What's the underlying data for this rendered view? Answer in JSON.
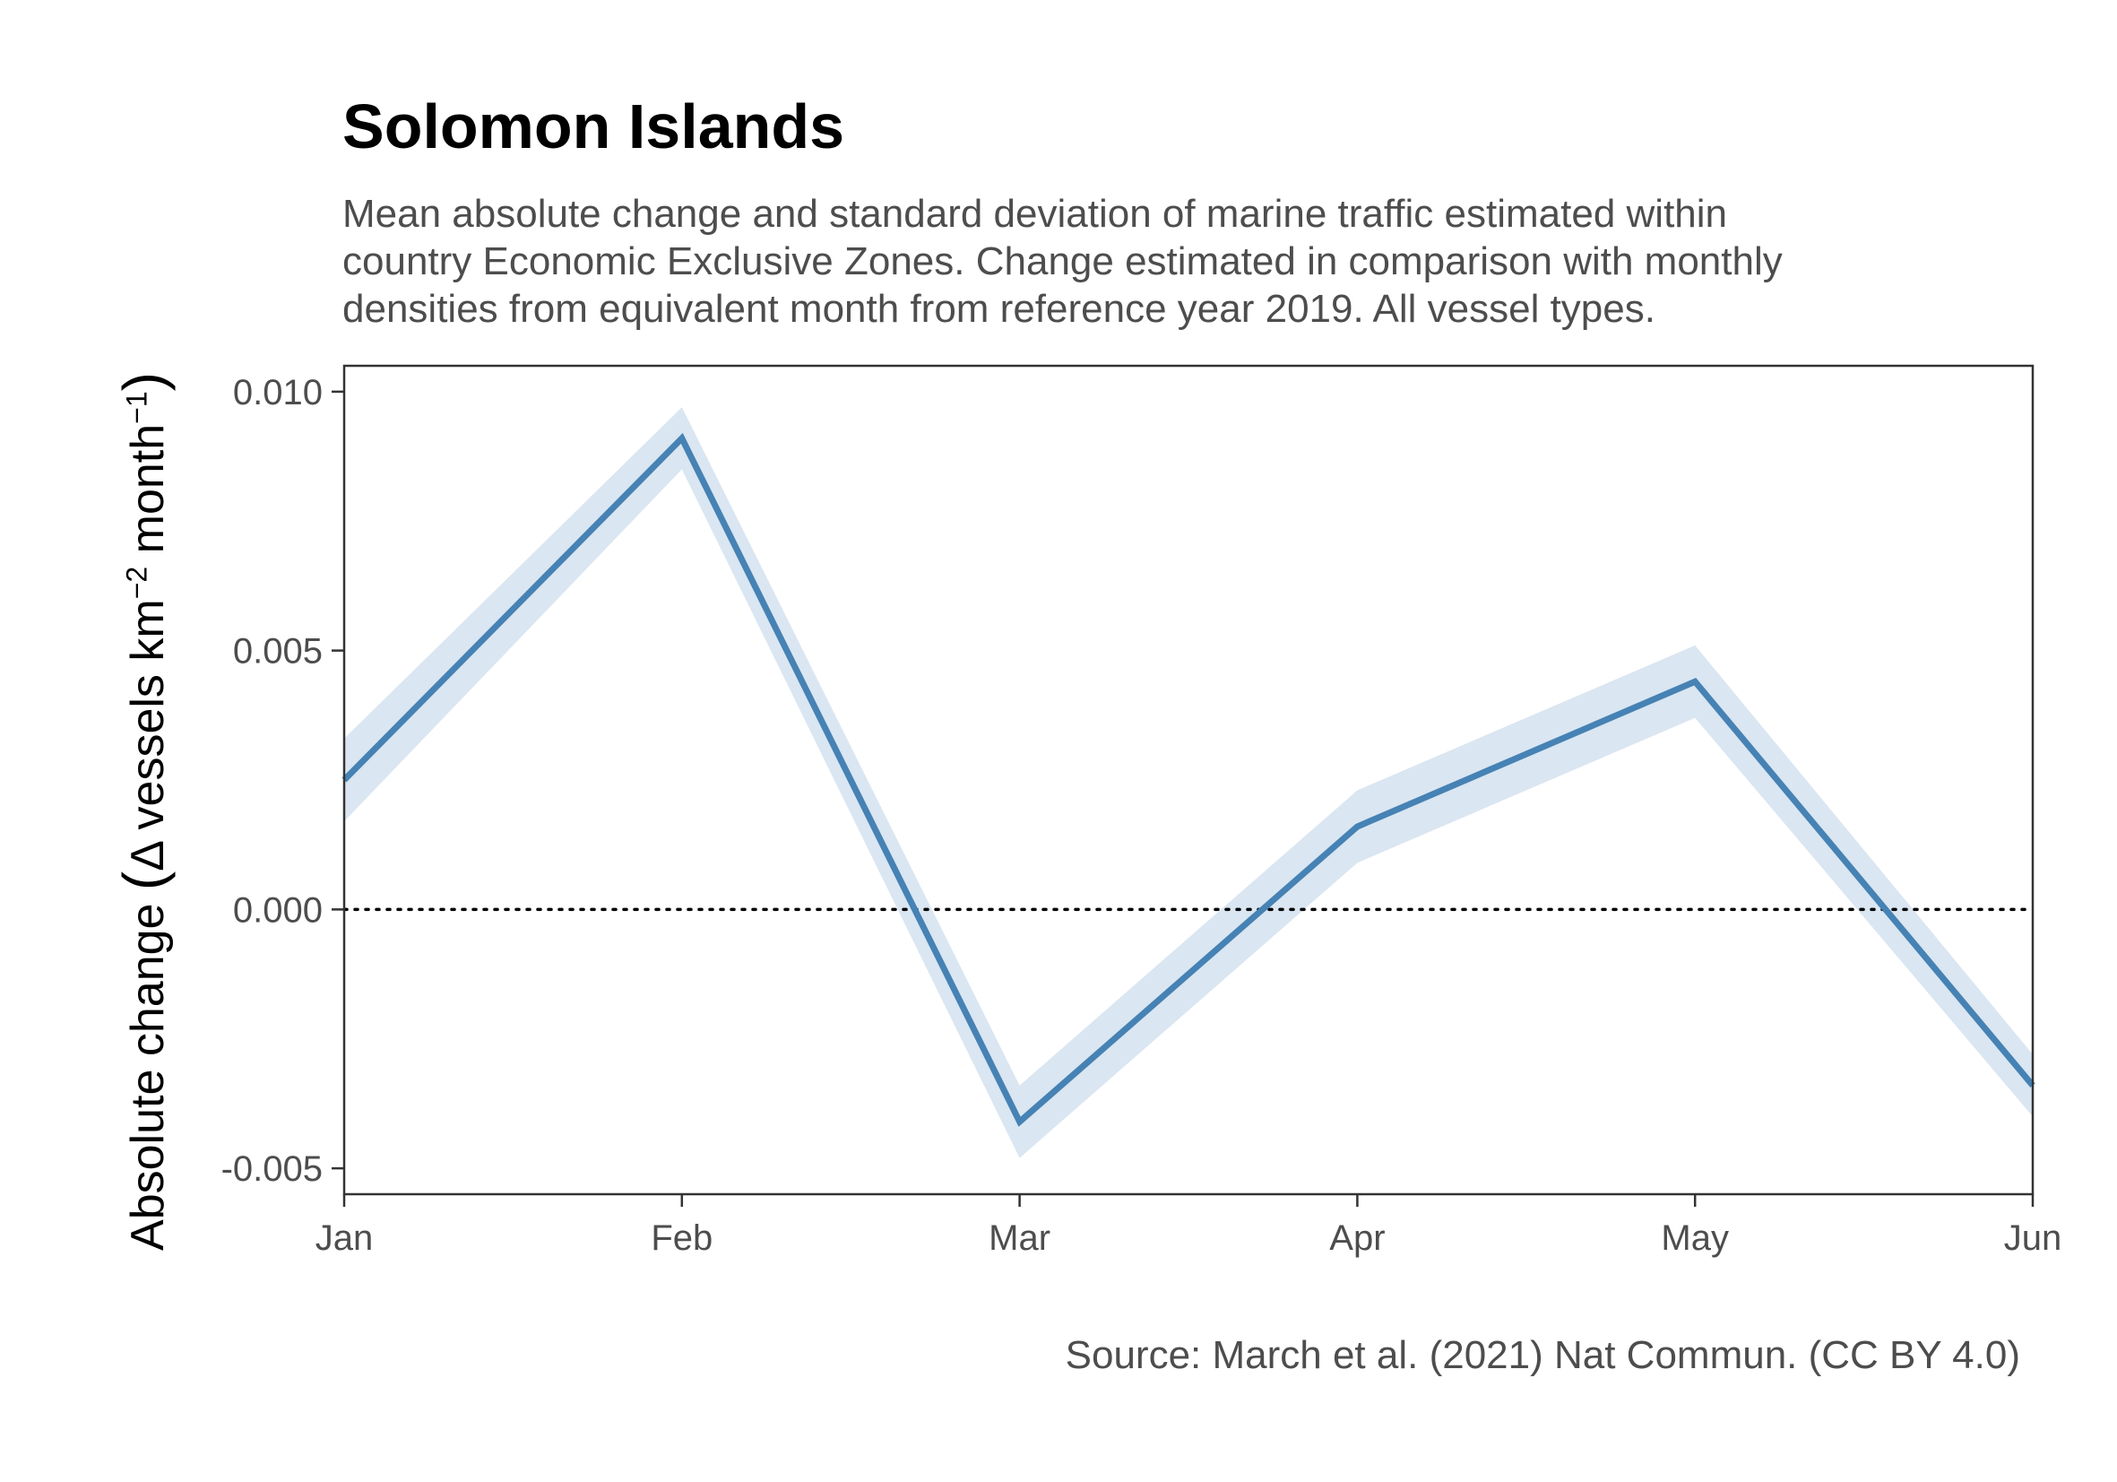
{
  "chart_data": {
    "type": "line",
    "title": "Solomon Islands",
    "subtitle_lines": [
      "Mean absolute change and standard deviation of marine traffic estimated within",
      "country Economic Exclusive Zones. Change estimated in comparison with monthly",
      "densities from equivalent month from reference year 2019. All vessel types."
    ],
    "caption": "Source: March et al. (2021) Nat Commun. (CC BY 4.0)",
    "ylabel": {
      "prefix": "Absolute change",
      "open": "(",
      "delta": "Δ vessels km",
      "exp1": "−2",
      "mid": " month",
      "exp2": "−1",
      "close": ")"
    },
    "xlabel": "",
    "categories": [
      "Jan",
      "Feb",
      "Mar",
      "Apr",
      "May",
      "Jun"
    ],
    "series": [
      {
        "values": [
          0.0025,
          0.0091,
          -0.0041,
          0.0016,
          0.0044,
          -0.0034
        ],
        "sd": [
          0.0008,
          0.0006,
          0.0007,
          0.0007,
          0.0007,
          0.0006
        ]
      }
    ],
    "yticks": [
      -0.005,
      0.0,
      0.005,
      0.01
    ],
    "ytick_labels": [
      "-0.005",
      "0.000",
      "0.005",
      "0.010"
    ],
    "ylim": [
      -0.0055,
      0.0105
    ],
    "reference_line": 0.0,
    "colors": {
      "line": "#4682b4",
      "ribbon": "#dae6f1",
      "reference": "#000000",
      "axis": "#333333"
    }
  }
}
